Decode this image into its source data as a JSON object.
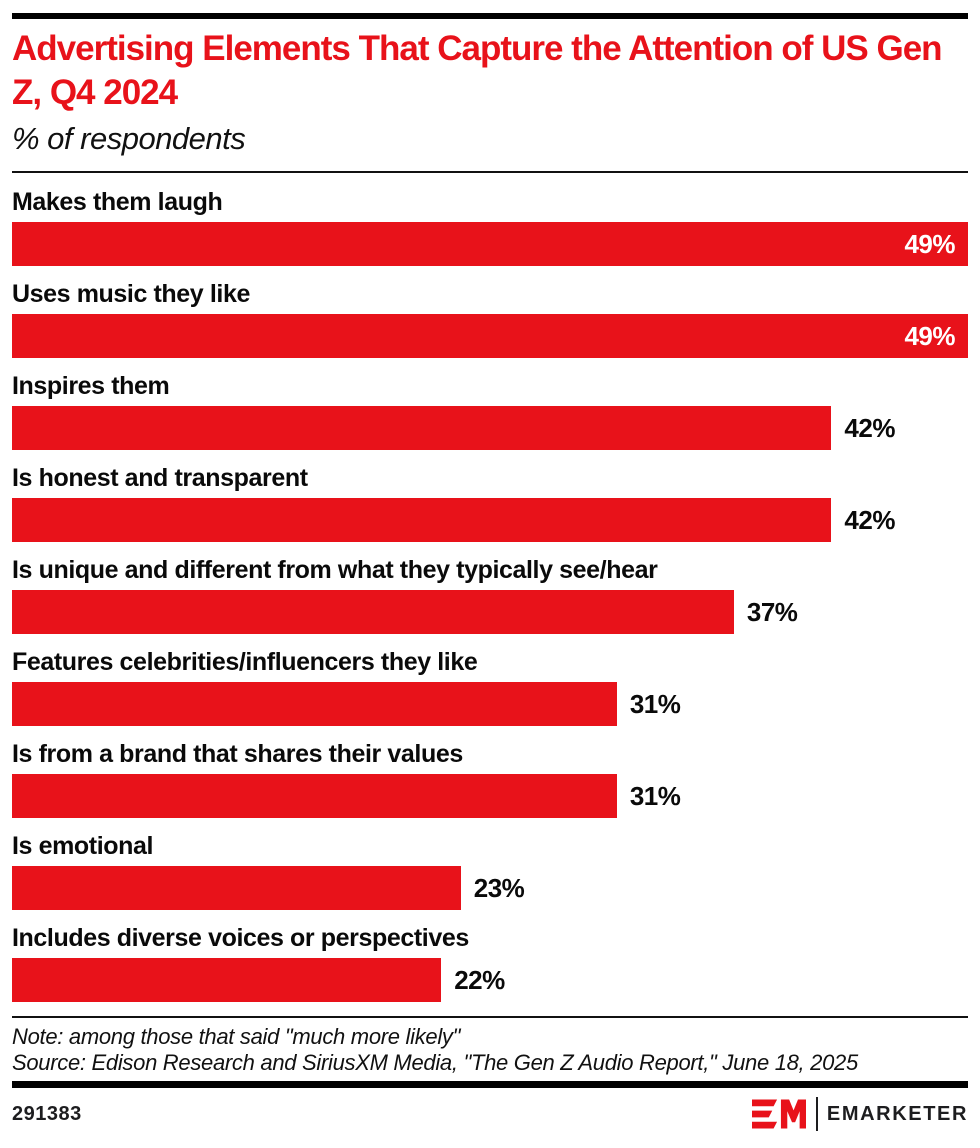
{
  "page": {
    "title": "Advertising Elements That Capture the Attention of US Gen Z, Q4 2024",
    "subtitle": "% of respondents",
    "note": "Note: among those that said \"much more likely\"",
    "source": "Source: Edison Research and SiriusXM Media, \"The Gen Z Audio Report,\" June 18, 2025",
    "chart_id": "291383",
    "brand": "EMARKETER",
    "colors": {
      "accent_red": "#e8121a",
      "rule_black": "#000000",
      "text_black": "#0a0a0a",
      "value_inside_label": "#ffffff"
    }
  },
  "chart_data": {
    "type": "bar",
    "orientation": "horizontal",
    "title": "Advertising Elements That Capture the Attention of US Gen Z, Q4 2024",
    "subtitle": "% of respondents",
    "categories": [
      "Makes them laugh",
      "Uses music they like",
      "Inspires them",
      "Is honest and transparent",
      "Is unique and different from what they typically see/hear",
      "Features celebrities/influencers they like",
      "Is from a brand that shares their values",
      "Is emotional",
      "Includes diverse voices or perspectives"
    ],
    "values": [
      49,
      49,
      42,
      42,
      37,
      31,
      31,
      23,
      22
    ],
    "value_suffix": "%",
    "xlim": [
      0,
      49
    ],
    "bar_color": "#e8121a",
    "grid": false,
    "legend": false,
    "value_label_inside_threshold": 0.97
  }
}
